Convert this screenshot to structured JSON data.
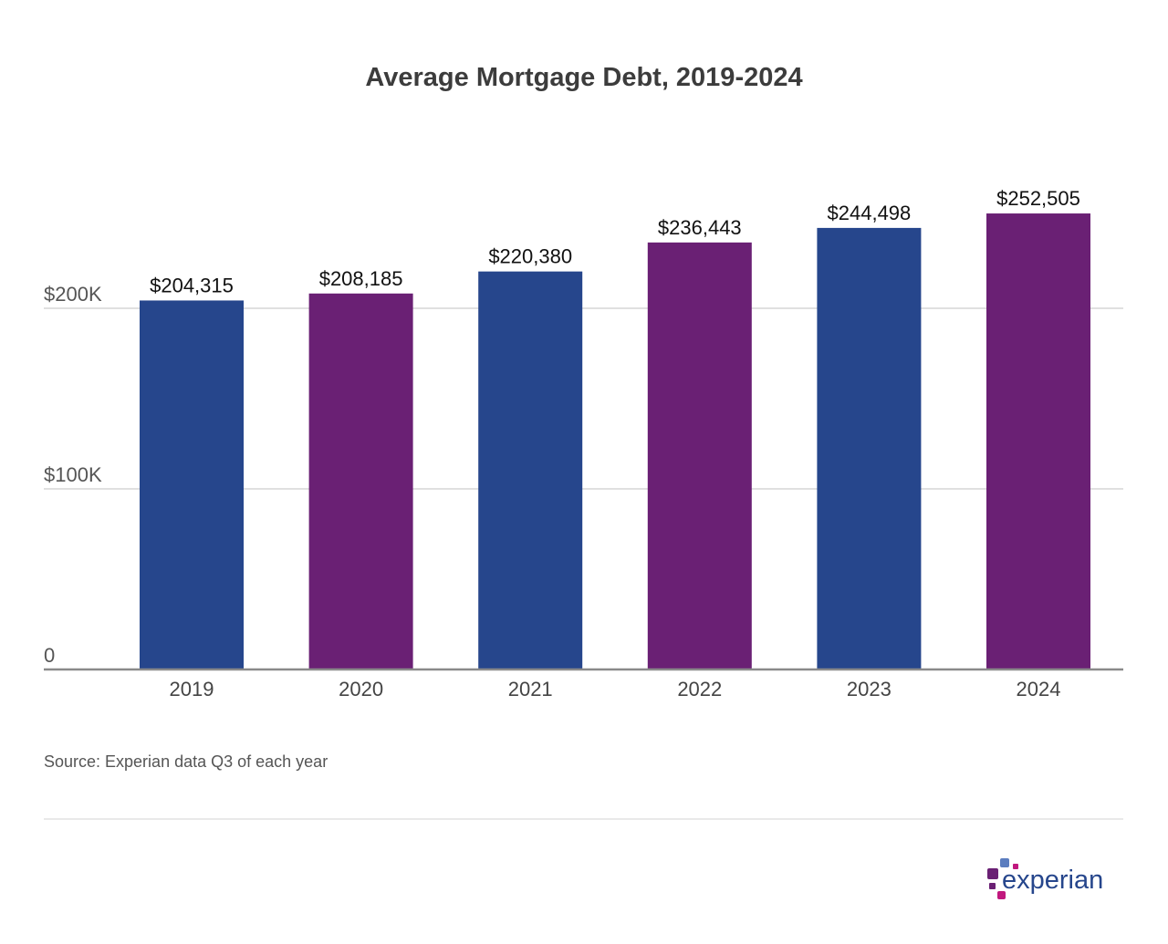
{
  "chart_data": {
    "type": "bar",
    "title": "Average Mortgage Debt, 2019-2024",
    "categories": [
      "2019",
      "2020",
      "2021",
      "2022",
      "2023",
      "2024"
    ],
    "values": [
      204315,
      208185,
      220380,
      236443,
      244498,
      252505
    ],
    "value_labels": [
      "$204,315",
      "$208,185",
      "$220,380",
      "$236,443",
      "$244,498",
      "$252,505"
    ],
    "bar_colors": [
      "#26468c",
      "#6a2074",
      "#26468c",
      "#6a2074",
      "#26468c",
      "#6a2074"
    ],
    "yticks": [
      0,
      100000,
      200000
    ],
    "ytick_labels": [
      "0",
      "$100K",
      "$200K"
    ],
    "ylim": [
      0,
      265000
    ],
    "grid": true,
    "xlabel": "",
    "ylabel": ""
  },
  "source": "Source: Experian data Q3 of each year",
  "logo": {
    "text": "experian",
    "colors": [
      "#26468c",
      "#6a2074",
      "#c1187e",
      "#5b7dbf"
    ]
  }
}
